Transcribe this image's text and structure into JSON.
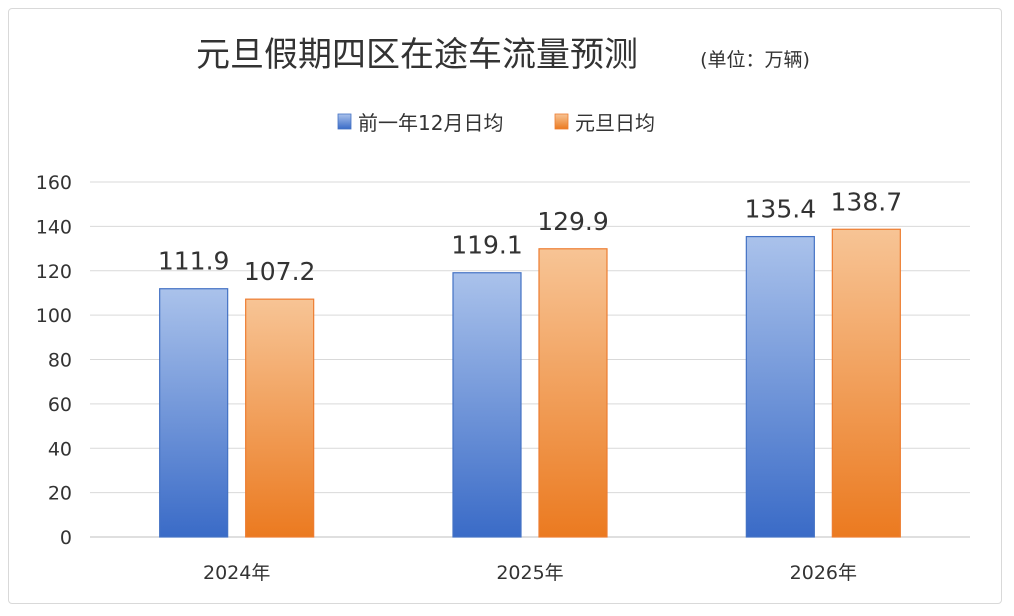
{
  "chart_data": {
    "type": "bar",
    "title": "元旦假期四区在途车流量预测",
    "subtitle": "(单位：万辆)",
    "categories": [
      "2024年",
      "2025年",
      "2026年"
    ],
    "series": [
      {
        "name": "前一年12月日均",
        "values": [
          111.9,
          119.1,
          135.4
        ],
        "color": "#4472c4",
        "gradient": [
          "#aac2eb",
          "#3a6bc7"
        ]
      },
      {
        "name": "元旦日均",
        "values": [
          107.2,
          129.9,
          138.7
        ],
        "color": "#ed7d31",
        "gradient": [
          "#f7c495",
          "#eb7a20"
        ]
      }
    ],
    "ylim": [
      0,
      160
    ],
    "yticks": [
      0,
      20,
      40,
      60,
      80,
      100,
      120,
      140,
      160
    ],
    "grid": true,
    "legend": "top",
    "data_labels": true
  }
}
